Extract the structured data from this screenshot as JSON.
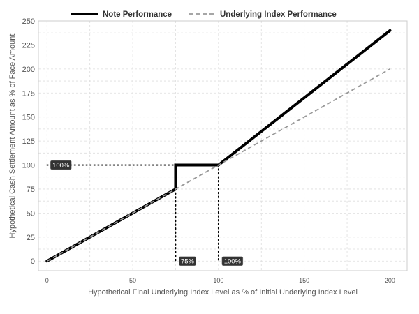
{
  "chart_data": {
    "type": "line",
    "title": "",
    "xlabel": "Hypothetical Final Underlying Index Level as % of Initial Underlying Index Level",
    "ylabel": "Hypothetical Cash Settlement Amount as % of Face Amount",
    "xlim": [
      -5,
      210
    ],
    "ylim": [
      -10,
      250
    ],
    "x_ticks": [
      0,
      50,
      100,
      150,
      200
    ],
    "y_ticks": [
      0,
      25,
      50,
      75,
      100,
      125,
      150,
      175,
      200,
      225,
      250
    ],
    "grid": true,
    "legend_position": "top",
    "series": [
      {
        "name": "Note Performance",
        "color": "#000000",
        "style": "solid",
        "points": [
          [
            0,
            0
          ],
          [
            75,
            75
          ],
          [
            75,
            100
          ],
          [
            100,
            100
          ],
          [
            200,
            240
          ]
        ]
      },
      {
        "name": "Underlying Index Performance",
        "color": "#999999",
        "style": "dashed",
        "points": [
          [
            0,
            0
          ],
          [
            200,
            200
          ]
        ]
      }
    ],
    "reference_lines": [
      {
        "points": [
          [
            0,
            100
          ],
          [
            75,
            100
          ]
        ]
      },
      {
        "points": [
          [
            75,
            75
          ],
          [
            75,
            0
          ]
        ]
      },
      {
        "points": [
          [
            100,
            100
          ],
          [
            100,
            0
          ]
        ]
      }
    ],
    "annotations": [
      {
        "text": "100%",
        "x": 0,
        "y": 100
      },
      {
        "text": "75%",
        "x": 75,
        "y": 0
      },
      {
        "text": "100%",
        "x": 100,
        "y": 0
      }
    ]
  }
}
